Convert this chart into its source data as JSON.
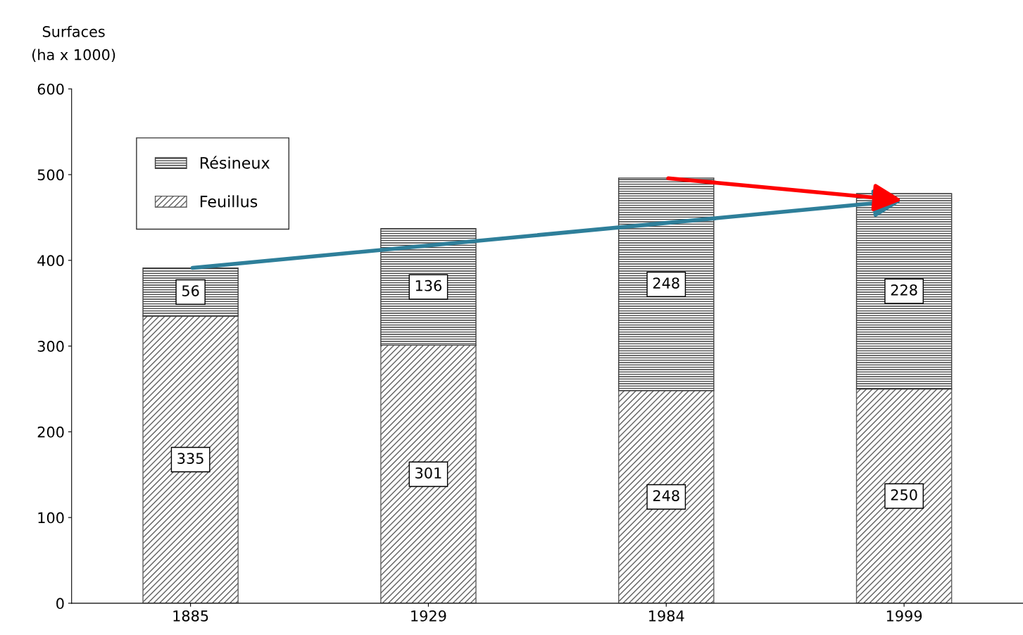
{
  "chart_data": {
    "type": "bar",
    "stacked": true,
    "ylabel": "Surfaces\n(ha x 1000)",
    "categories": [
      "1885",
      "1929",
      "1984",
      "1999"
    ],
    "series": [
      {
        "name": "Feuillus",
        "color": "#606060",
        "values": [
          335,
          301,
          248,
          250
        ]
      },
      {
        "name": "Résineux",
        "color": "#404040",
        "values": [
          56,
          136,
          248,
          228
        ]
      }
    ],
    "ylim": [
      0,
      600
    ],
    "yticks": [
      0,
      100,
      200,
      300,
      400,
      500,
      600
    ],
    "grid": false,
    "legend": "top left",
    "data_labels": true
  }
}
